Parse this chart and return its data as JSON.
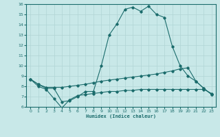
{
  "xlabel": "Humidex (Indice chaleur)",
  "xlim": [
    -0.5,
    23.5
  ],
  "ylim": [
    6,
    16
  ],
  "xticks": [
    0,
    1,
    2,
    3,
    4,
    5,
    6,
    7,
    8,
    9,
    10,
    11,
    12,
    13,
    14,
    15,
    16,
    17,
    18,
    19,
    20,
    21,
    22,
    23
  ],
  "yticks": [
    6,
    7,
    8,
    9,
    10,
    11,
    12,
    13,
    14,
    15,
    16
  ],
  "bg_color": "#c8e8e8",
  "line_color": "#1a6b6b",
  "grid_color": "#b0d4d4",
  "line1_x": [
    0,
    1,
    2,
    3,
    4,
    5,
    6,
    7,
    8,
    9,
    10,
    11,
    12,
    13,
    14,
    15,
    16,
    17,
    18,
    19,
    20,
    21,
    22,
    23
  ],
  "line1_y": [
    8.7,
    8.2,
    7.8,
    7.8,
    6.5,
    6.6,
    7.0,
    7.5,
    7.5,
    10.0,
    13.0,
    14.1,
    15.5,
    15.7,
    15.3,
    15.8,
    15.0,
    14.7,
    11.9,
    10.0,
    9.0,
    8.5,
    7.8,
    7.2
  ],
  "line2_x": [
    0,
    1,
    2,
    3,
    4,
    5,
    6,
    7,
    8,
    9,
    10,
    11,
    12,
    13,
    14,
    15,
    16,
    17,
    18,
    19,
    20,
    21,
    22,
    23
  ],
  "line2_y": [
    8.7,
    8.2,
    7.9,
    7.9,
    7.9,
    8.0,
    8.1,
    8.2,
    8.35,
    8.5,
    8.6,
    8.7,
    8.8,
    8.9,
    9.0,
    9.1,
    9.2,
    9.35,
    9.5,
    9.7,
    9.8,
    8.5,
    7.8,
    7.2
  ],
  "line3_x": [
    0,
    1,
    2,
    3,
    4,
    5,
    6,
    7,
    8,
    9,
    10,
    11,
    12,
    13,
    14,
    15,
    16,
    17,
    18,
    19,
    20,
    21,
    22,
    23
  ],
  "line3_y": [
    8.7,
    8.0,
    7.7,
    6.8,
    5.9,
    6.7,
    7.1,
    7.2,
    7.3,
    7.4,
    7.5,
    7.5,
    7.6,
    7.6,
    7.7,
    7.7,
    7.7,
    7.7,
    7.7,
    7.7,
    7.7,
    7.7,
    7.7,
    7.3
  ]
}
